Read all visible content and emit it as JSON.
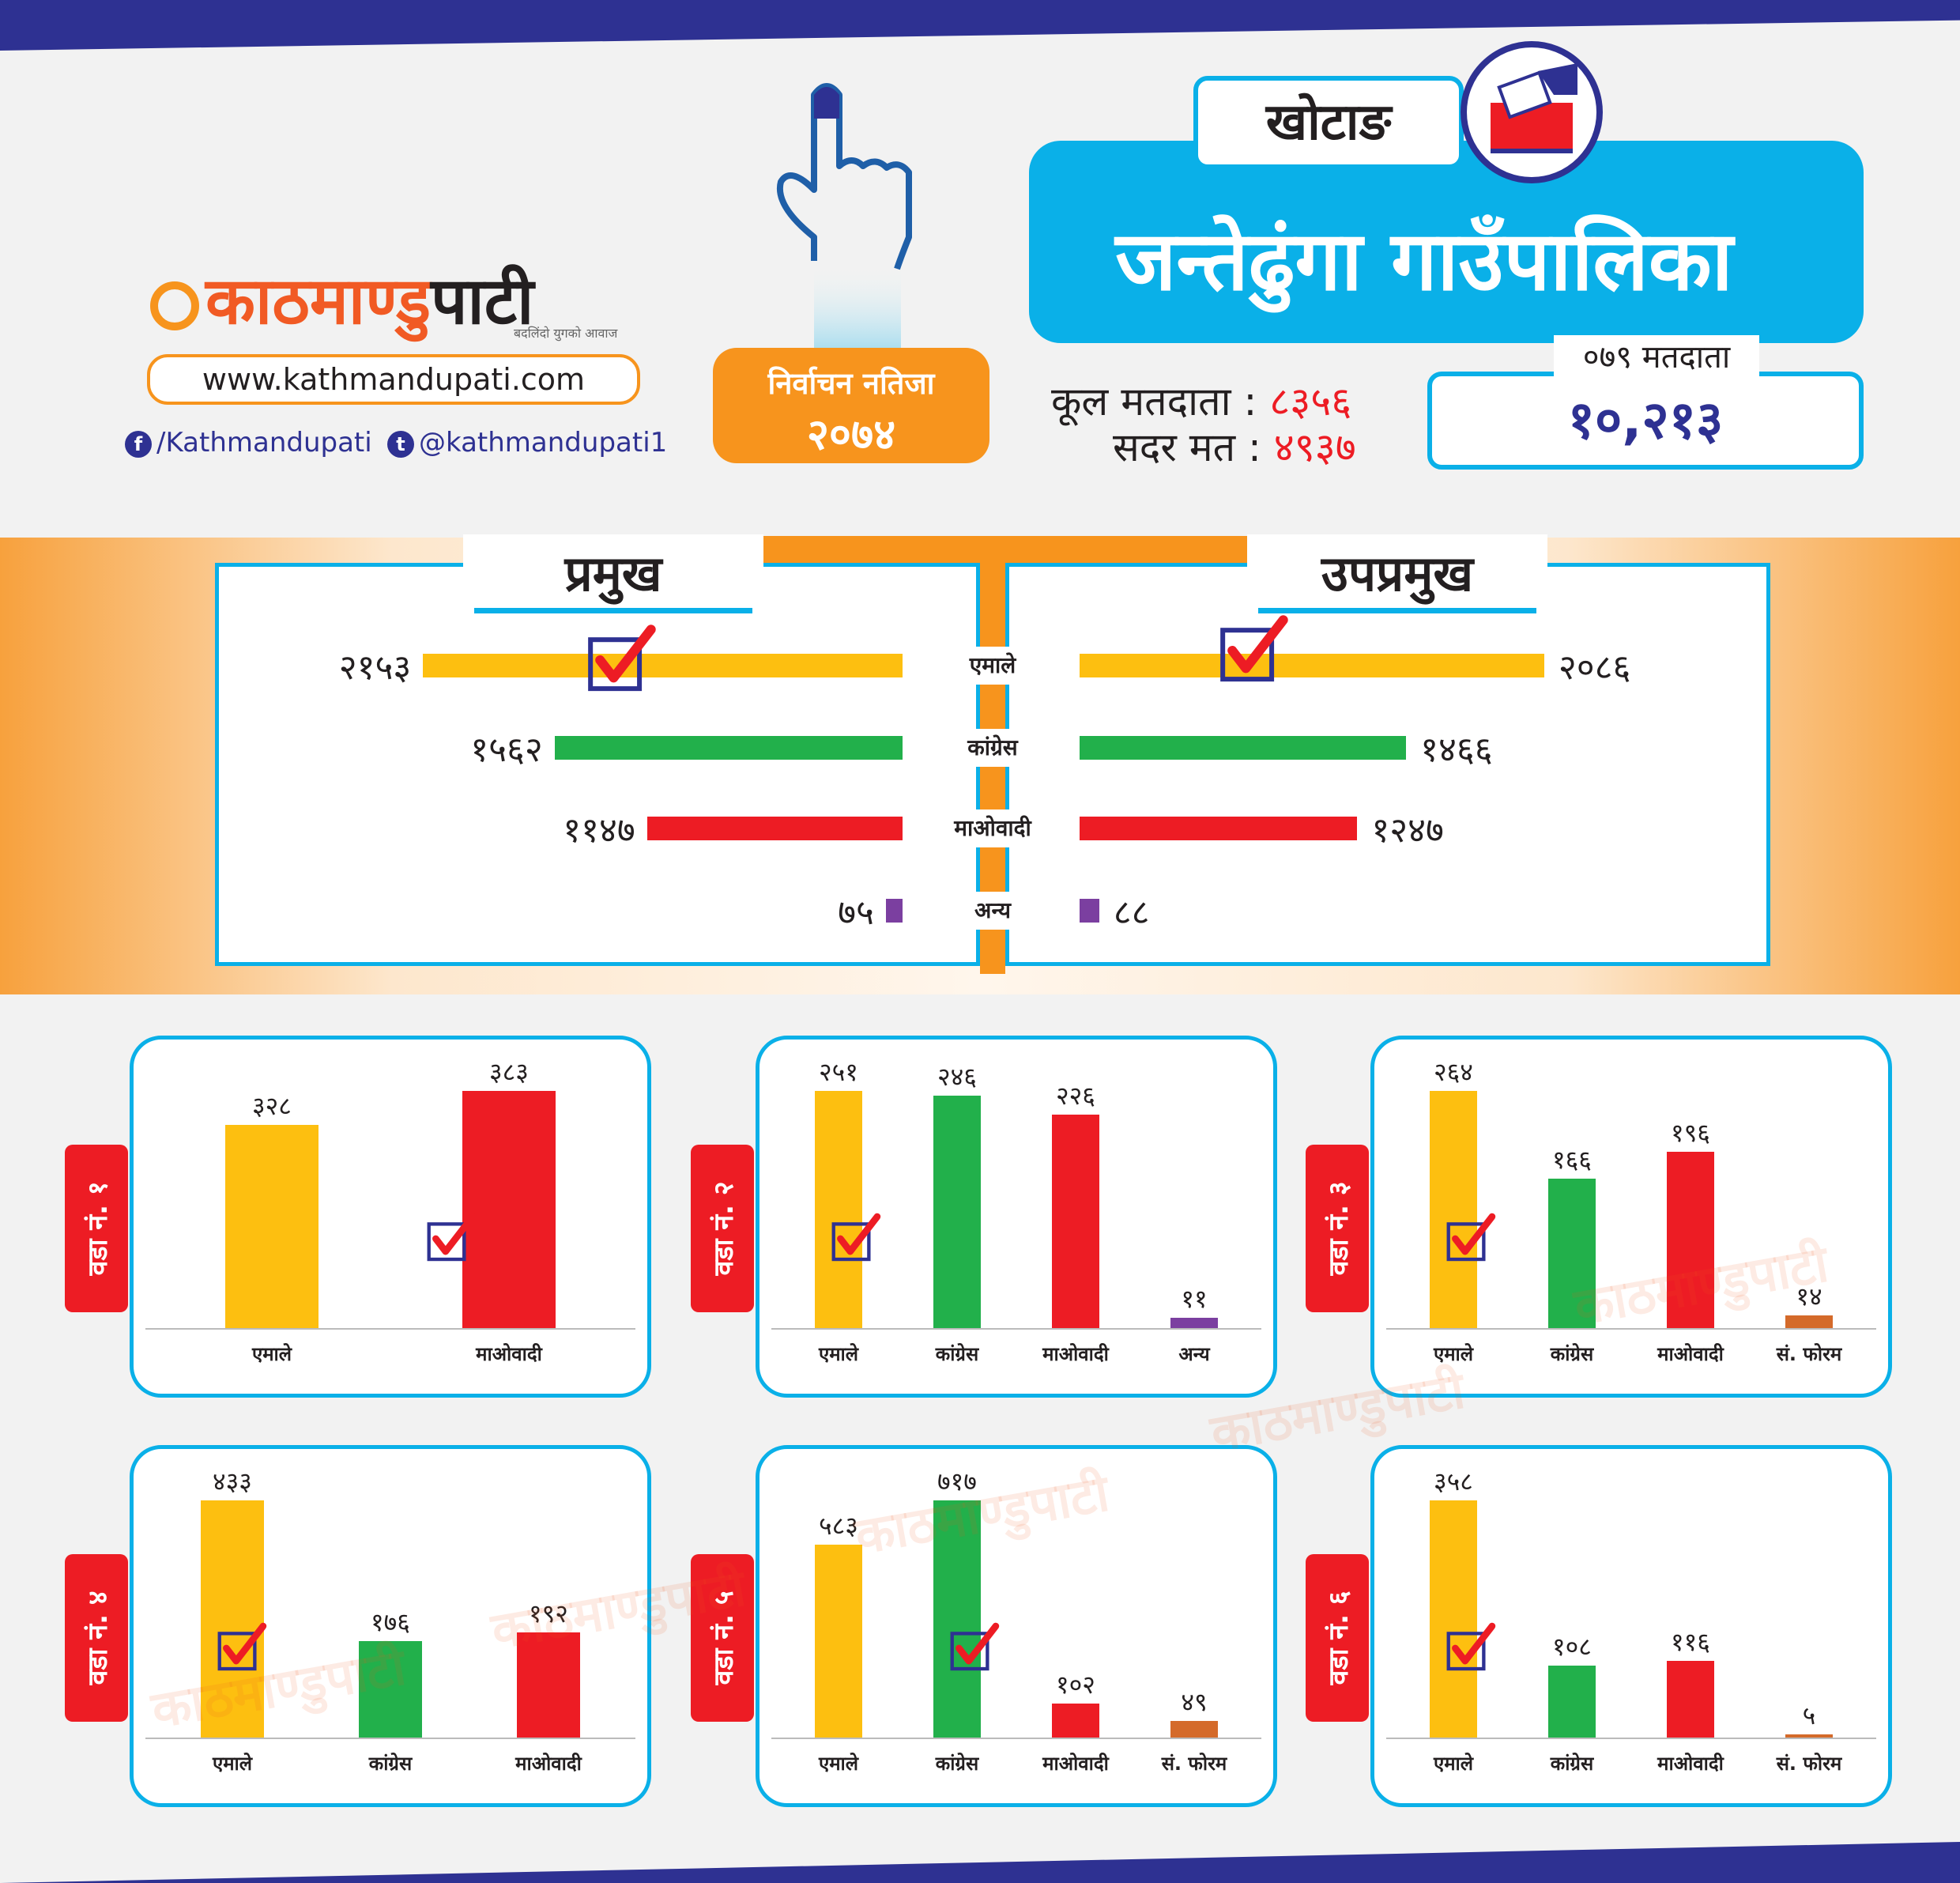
{
  "brand": {
    "logo_part1": "काठमाण्डु",
    "logo_part2": "पाटी",
    "tagline": "बदलिंदो युगको आवाज",
    "url": "www.kathmandupati.com",
    "facebook": "/Kathmandupati",
    "twitter": "@kathmandupati1"
  },
  "election": {
    "label": "निर्वाचन नतिजा",
    "year": "२०७४"
  },
  "place": {
    "district": "खोटाङ",
    "municipality": "जन्तेढुंगा  गाउँपालिका"
  },
  "voters": {
    "total_label": "कूल मतदाता",
    "total_value": "८३५६",
    "valid_label": "सदर मत",
    "valid_value": "४९३७",
    "colon": ":",
    "prev_label": "०७९ मतदाता",
    "prev_value": "१०,२१३"
  },
  "colors": {
    "एमाले": "#fdbf10",
    "कांग्रेस": "#22b04b",
    "माओवादी": "#ed1c24",
    "अन्य": "#7b3fa0",
    "सं. फोरम": "#d46a2a",
    "accent": "#0ab0e8",
    "orange": "#f7941d",
    "navy": "#2e3192"
  },
  "chart_data": [
    {
      "type": "bar",
      "title": "प्रमुख",
      "categories": [
        "एमाले",
        "कांग्रेस",
        "माओवादी",
        "अन्य"
      ],
      "values": [
        2153,
        1562,
        1147,
        75
      ],
      "value_labels": [
        "२१५३",
        "१५६२",
        "११४७",
        "७५"
      ],
      "winner": "एमाले"
    },
    {
      "type": "bar",
      "title": "उपप्रमुख",
      "categories": [
        "एमाले",
        "कांग्रेस",
        "माओवादी",
        "अन्य"
      ],
      "values": [
        2086,
        1466,
        1247,
        88
      ],
      "value_labels": [
        "२०८६",
        "१४६६",
        "१२४७",
        "८८"
      ],
      "winner": "एमाले"
    },
    {
      "type": "bar",
      "title": "वडा नं. १",
      "categories": [
        "एमाले",
        "माओवादी"
      ],
      "values": [
        328,
        383
      ],
      "value_labels": [
        "३२८",
        "३८३"
      ],
      "winner": "माओवादी"
    },
    {
      "type": "bar",
      "title": "वडा नं. २",
      "categories": [
        "एमाले",
        "कांग्रेस",
        "माओवादी",
        "अन्य"
      ],
      "values": [
        251,
        246,
        226,
        11
      ],
      "value_labels": [
        "२५१",
        "२४६",
        "२२६",
        "११"
      ],
      "winner": "एमाले"
    },
    {
      "type": "bar",
      "title": "वडा नं. ३",
      "categories": [
        "एमाले",
        "कांग्रेस",
        "माओवादी",
        "सं. फोरम"
      ],
      "values": [
        264,
        166,
        196,
        14
      ],
      "value_labels": [
        "२६४",
        "१६६",
        "१९६",
        "१४"
      ],
      "winner": "एमाले"
    },
    {
      "type": "bar",
      "title": "वडा नं. ४",
      "categories": [
        "एमाले",
        "कांग्रेस",
        "माओवादी"
      ],
      "values": [
        433,
        176,
        192
      ],
      "value_labels": [
        "४३३",
        "१७६",
        "१९२"
      ],
      "winner": "एमाले"
    },
    {
      "type": "bar",
      "title": "वडा नं. ५",
      "categories": [
        "एमाले",
        "कांग्रेस",
        "माओवादी",
        "सं. फोरम"
      ],
      "values": [
        583,
        717,
        102,
        49
      ],
      "value_labels": [
        "५८३",
        "७१७",
        "१०२",
        "४९"
      ],
      "winner": "कांग्रेस"
    },
    {
      "type": "bar",
      "title": "वडा नं. ६",
      "categories": [
        "एमाले",
        "कांग्रेस",
        "माओवादी",
        "सं. फोरम"
      ],
      "values": [
        358,
        108,
        116,
        5
      ],
      "value_labels": [
        "३५८",
        "१०८",
        "११६",
        "५"
      ],
      "winner": "एमाले"
    }
  ]
}
